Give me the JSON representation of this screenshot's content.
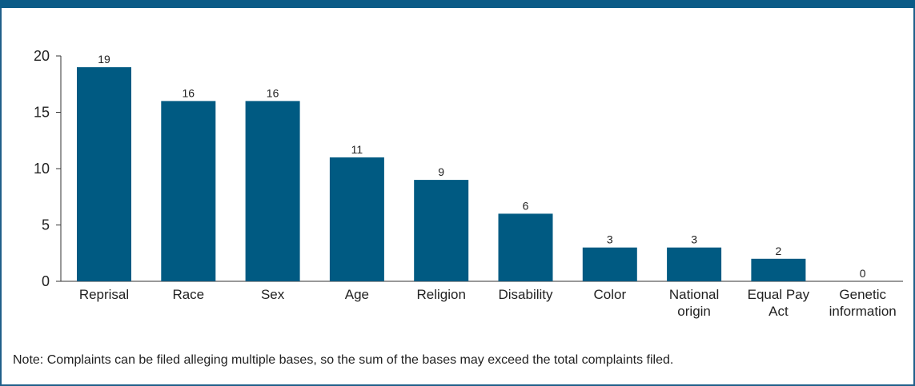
{
  "colors": {
    "bar": "#005a82",
    "frame": "#1f5f8a"
  },
  "chart_data": {
    "type": "bar",
    "categories": [
      "Reprisal",
      "Race",
      "Sex",
      "Age",
      "Religion",
      "Disability",
      "Color",
      "National origin",
      "Equal Pay Act",
      "Genetic information"
    ],
    "category_lines": [
      [
        "Reprisal"
      ],
      [
        "Race"
      ],
      [
        "Sex"
      ],
      [
        "Age"
      ],
      [
        "Religion"
      ],
      [
        "Disability"
      ],
      [
        "Color"
      ],
      [
        "National",
        "origin"
      ],
      [
        "Equal Pay",
        "Act"
      ],
      [
        "Genetic",
        "information"
      ]
    ],
    "values": [
      19,
      16,
      16,
      11,
      9,
      6,
      3,
      3,
      2,
      0
    ],
    "ylim": [
      0,
      20
    ],
    "yticks": [
      0,
      5,
      10,
      15,
      20
    ],
    "grid": false,
    "xlabel": "",
    "ylabel": ""
  },
  "note": "Note: Complaints can be filed alleging multiple bases, so the sum of the bases may exceed the total complaints filed."
}
